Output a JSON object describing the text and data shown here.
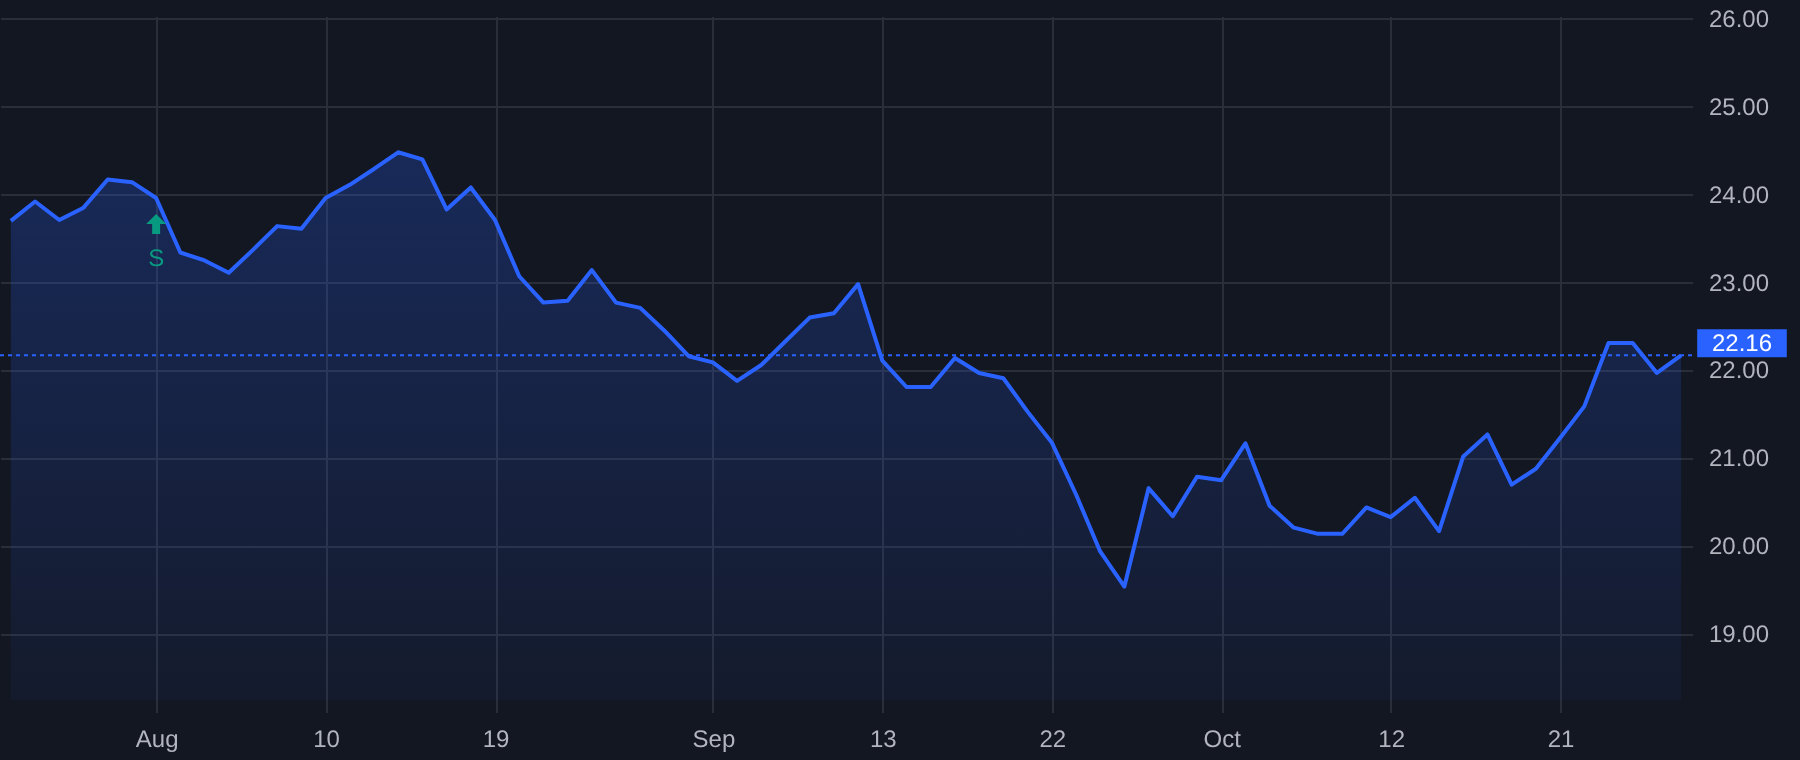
{
  "chart_data": {
    "type": "area",
    "categories": [
      null,
      null,
      null,
      null,
      null,
      null,
      "Aug",
      null,
      null,
      null,
      null,
      null,
      null,
      "10",
      null,
      null,
      null,
      null,
      null,
      null,
      "19",
      null,
      null,
      null,
      null,
      null,
      null,
      null,
      null,
      "Sep",
      null,
      null,
      null,
      null,
      null,
      null,
      "13",
      null,
      null,
      null,
      null,
      null,
      null,
      "22",
      null,
      null,
      null,
      null,
      null,
      null,
      "Oct",
      null,
      null,
      null,
      null,
      null,
      null,
      "12",
      null,
      null,
      null,
      null,
      null,
      null,
      "21",
      null,
      null,
      null,
      null,
      null
    ],
    "series": [
      {
        "color": "#2962ff",
        "values": [
          23.69,
          23.91,
          23.7,
          23.84,
          24.16,
          24.13,
          23.95,
          23.33,
          23.24,
          23.1,
          23.36,
          23.63,
          23.6,
          23.95,
          24.1,
          24.28,
          24.47,
          24.39,
          23.82,
          24.07,
          23.7,
          23.06,
          22.76,
          22.78,
          23.13,
          22.76,
          22.7,
          22.44,
          22.15,
          22.08,
          21.87,
          22.05,
          22.32,
          22.59,
          22.64,
          22.97,
          22.1,
          21.8,
          21.8,
          22.13,
          21.96,
          21.9,
          21.52,
          21.17,
          20.58,
          19.93,
          19.53,
          20.65,
          20.33,
          20.78,
          20.74,
          21.16,
          20.45,
          20.2,
          20.13,
          20.13,
          20.43,
          20.32,
          20.54,
          20.16,
          21.01,
          21.26,
          20.69,
          20.87,
          21.22,
          21.58,
          22.3,
          22.3,
          21.96,
          22.16
        ]
      }
    ],
    "ylim": [
      18.24,
      26.02
    ],
    "yticks": [
      {
        "value": 19,
        "label": "19.00"
      },
      {
        "value": 20,
        "label": "20.00"
      },
      {
        "value": 21,
        "label": "21.00"
      },
      {
        "value": 22,
        "label": "22.00"
      },
      {
        "value": 23,
        "label": "23.00"
      },
      {
        "value": 24,
        "label": "24.00"
      },
      {
        "value": 25,
        "label": "25.00"
      },
      {
        "value": 26,
        "label": "26.00"
      }
    ],
    "grid": true,
    "ref_lines": [
      {
        "axis": "y",
        "value": 22.16,
        "label": "22.16",
        "color": "#2962ff",
        "line_style": "dotted"
      }
    ],
    "annotations": [
      {
        "text": "S",
        "x": "Aug",
        "y": 23.95
      }
    ]
  }
}
